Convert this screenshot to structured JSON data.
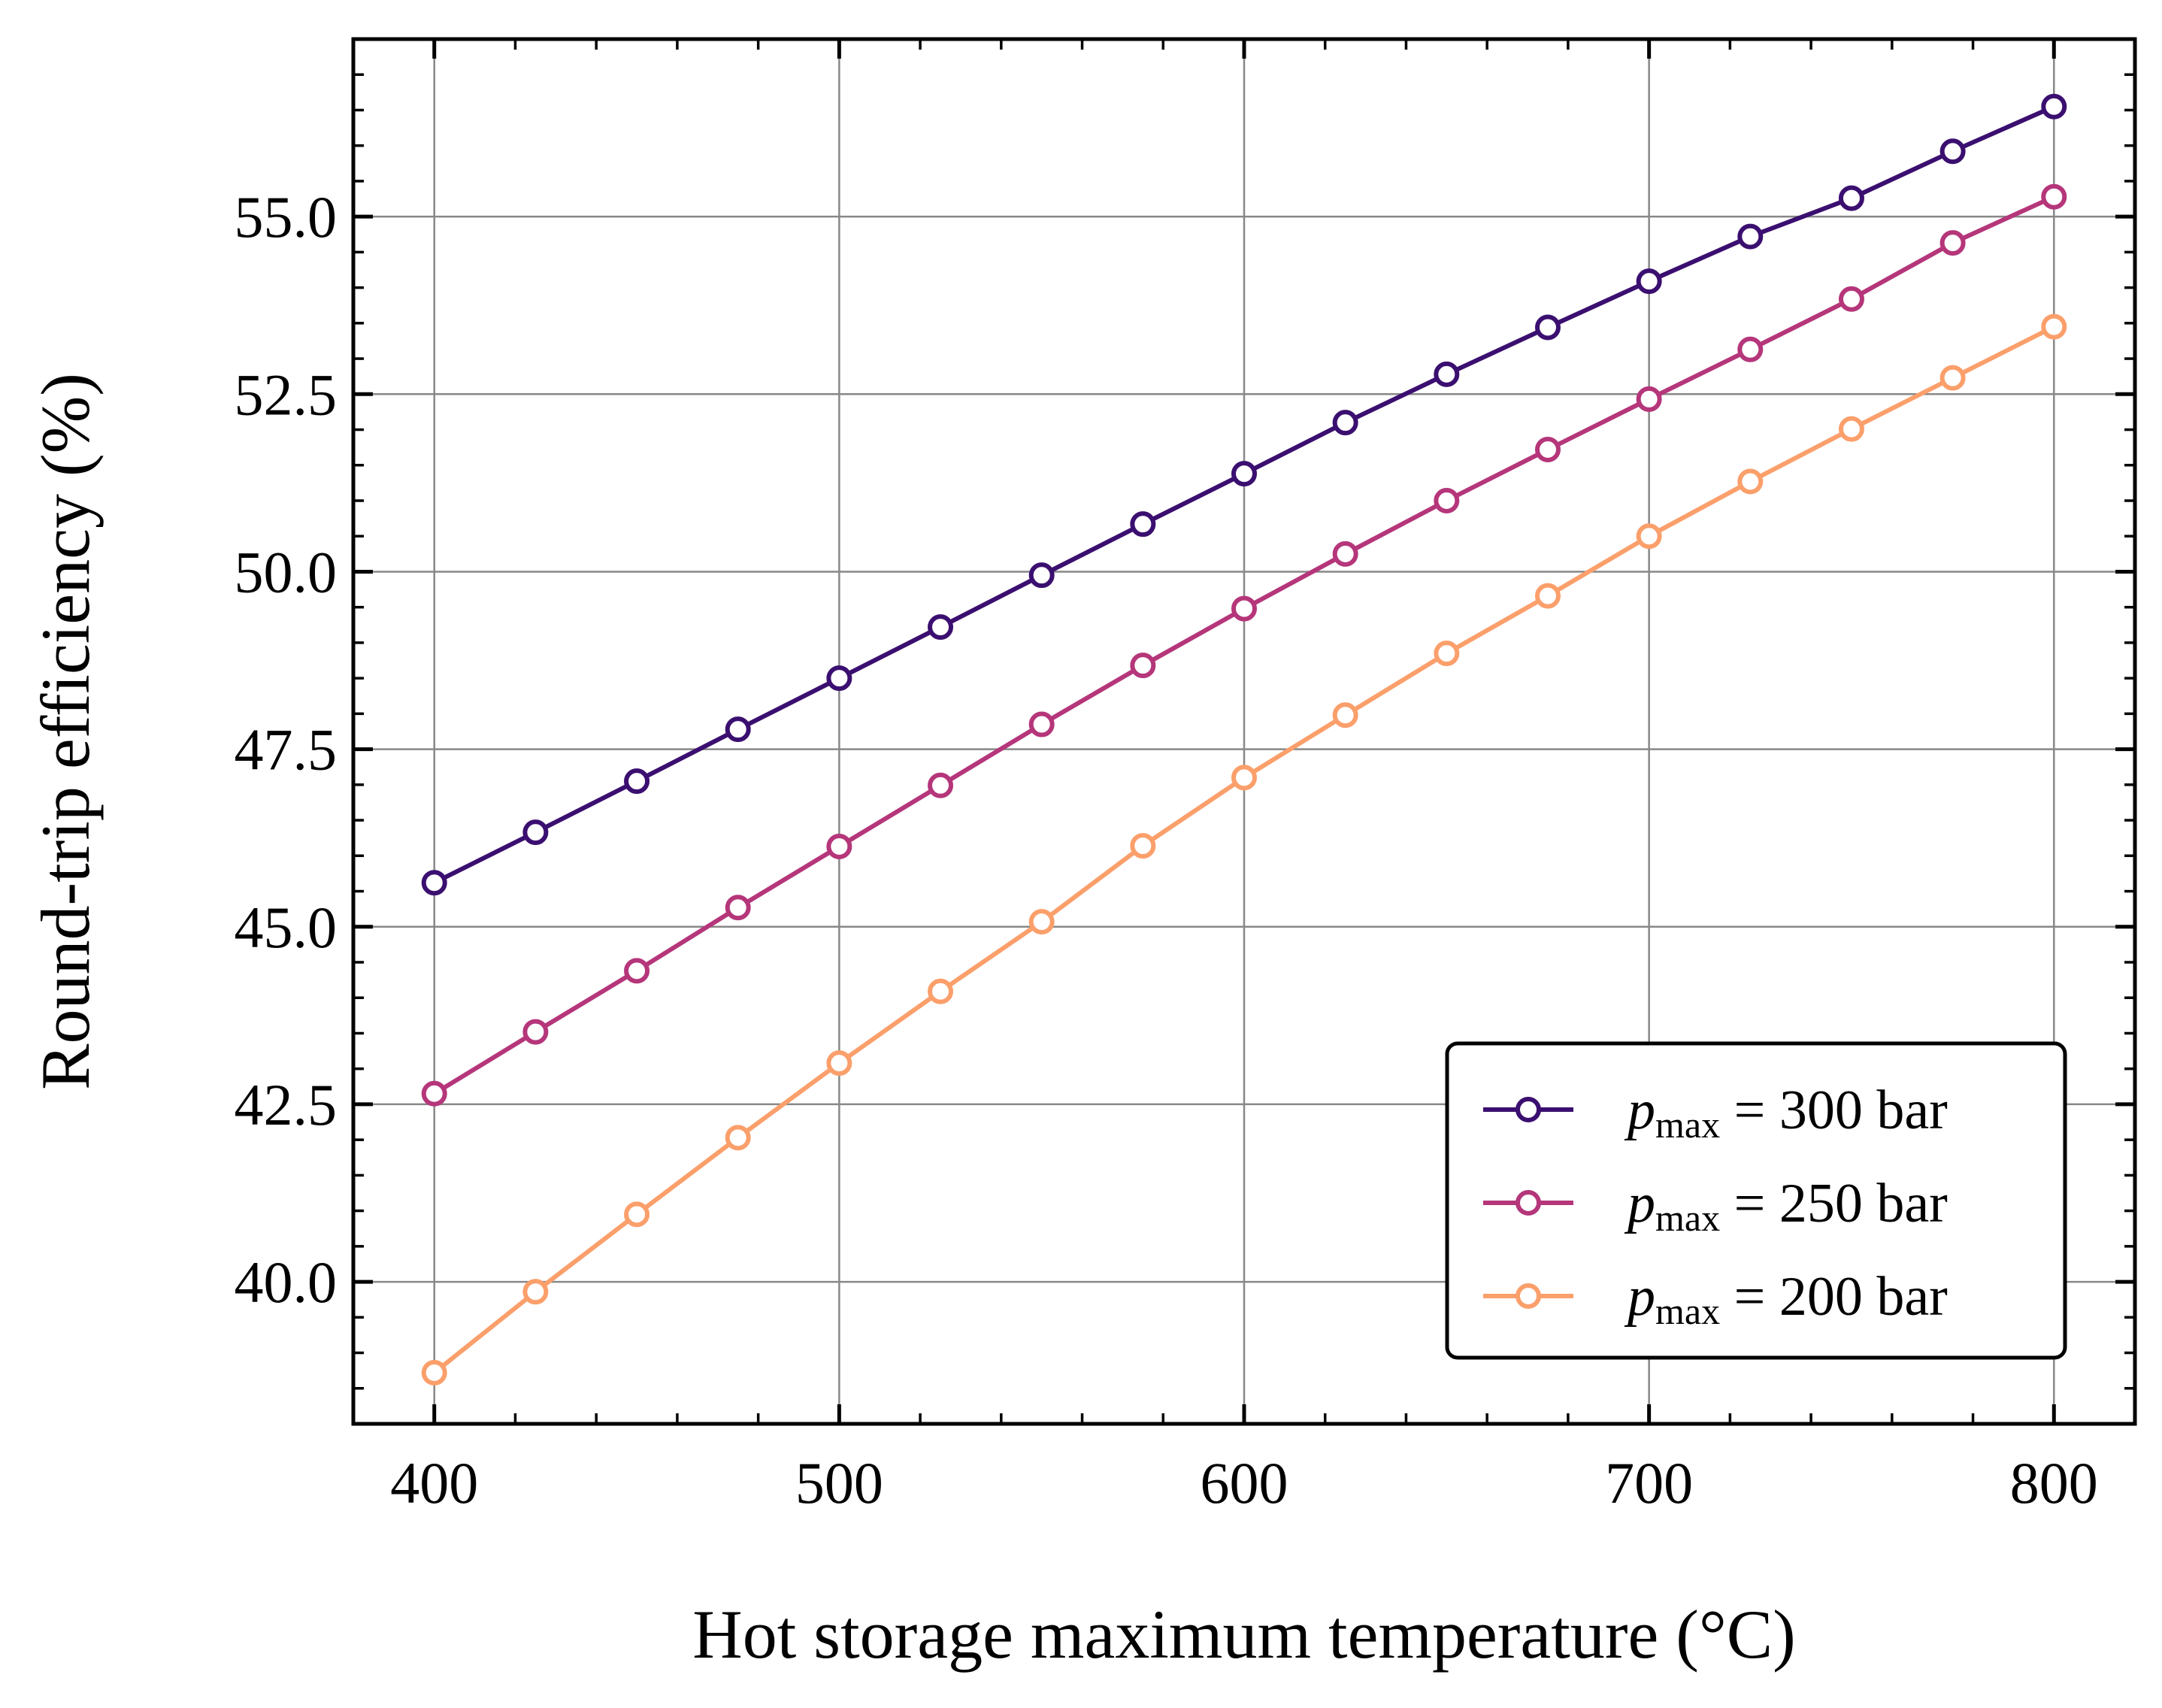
{
  "chart_data": {
    "type": "line",
    "title": "",
    "xlabel": "Hot storage maximum temperature (°C)",
    "ylabel": "Round-trip efficiency (%)",
    "xlim": [
      380,
      820
    ],
    "ylim": [
      38.0,
      57.5
    ],
    "grid": true,
    "legend_position": "lower-right",
    "x_ticks": [
      400,
      500,
      600,
      700,
      800
    ],
    "x_tick_labels": [
      "400",
      "500",
      "600",
      "700",
      "800"
    ],
    "y_ticks": [
      40.0,
      42.5,
      45.0,
      47.5,
      50.0,
      52.5,
      55.0
    ],
    "y_tick_labels": [
      "40.0",
      "42.5",
      "45.0",
      "47.5",
      "50.0",
      "52.5",
      "55.0"
    ],
    "x": [
      400,
      425,
      450,
      475,
      500,
      525,
      550,
      575,
      600,
      625,
      650,
      675,
      700,
      725,
      750,
      775,
      800
    ],
    "series": [
      {
        "name": "p_max = 300 bar",
        "legend": {
          "symbol": "p",
          "subscript": "max",
          "rest": " = 300 bar"
        },
        "color": "#3b0f70",
        "values": [
          45.62,
          46.33,
          47.05,
          47.78,
          48.5,
          49.22,
          49.95,
          50.67,
          51.38,
          52.1,
          52.78,
          53.44,
          54.09,
          54.72,
          55.26,
          55.92,
          56.55
        ]
      },
      {
        "name": "p_max = 250 bar",
        "legend": {
          "symbol": "p",
          "subscript": "max",
          "rest": " = 250 bar"
        },
        "color": "#b5367a",
        "values": [
          42.65,
          43.52,
          44.38,
          45.27,
          46.13,
          46.99,
          47.85,
          48.68,
          49.48,
          50.25,
          51.0,
          51.72,
          52.43,
          53.13,
          53.84,
          54.63,
          55.28
        ]
      },
      {
        "name": "p_max = 200 bar",
        "legend": {
          "symbol": "p",
          "subscript": "max",
          "rest": " = 200 bar"
        },
        "color": "#fb9f6b",
        "values": [
          38.72,
          39.86,
          40.95,
          42.03,
          43.08,
          44.09,
          45.07,
          46.14,
          47.1,
          47.98,
          48.85,
          49.66,
          50.5,
          51.27,
          52.01,
          52.73,
          53.45
        ]
      }
    ]
  }
}
